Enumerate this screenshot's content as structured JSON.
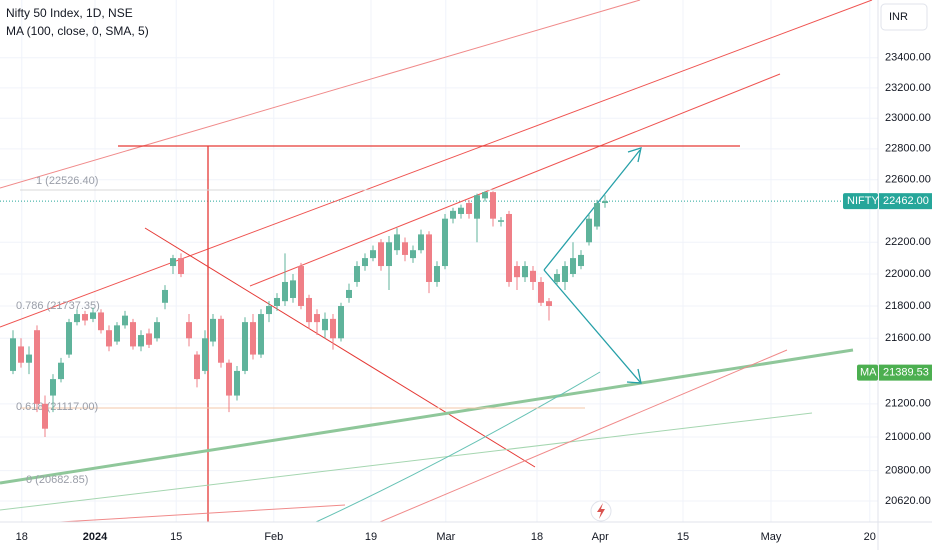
{
  "chart_data": {
    "type": "candlestick",
    "title": "Nifty 50 Index, 1D, NSE",
    "subtitle": "MA (100, close, 0, SMA, 5)",
    "currency": "INR",
    "log": true,
    "grid": true,
    "up_color": "#5fb39b",
    "down_color": "#ef7f87",
    "x": [
      0,
      1,
      2,
      3,
      4,
      5,
      6,
      7,
      8,
      9,
      10,
      11,
      12,
      13,
      14,
      15,
      16,
      17,
      18,
      19,
      20,
      21,
      22,
      23,
      24,
      25,
      26,
      27,
      28,
      29,
      30,
      31,
      32,
      33,
      34,
      35,
      36,
      37,
      38,
      39,
      40,
      41,
      42,
      43,
      44,
      45,
      46,
      47,
      48,
      49,
      50,
      51,
      52,
      53,
      54,
      55,
      56,
      57,
      58,
      59,
      60,
      61,
      62,
      63,
      64,
      65,
      66,
      67,
      68,
      69,
      70,
      71,
      72,
      73,
      74
    ],
    "open": [
      21400,
      21550,
      21450,
      21650,
      21200,
      21250,
      21350,
      21500,
      21700,
      21750,
      21720,
      21760,
      21650,
      21580,
      21680,
      21700,
      21550,
      21630,
      21600,
      21820,
      22050,
      22100,
      21700,
      21500,
      21400,
      21580,
      21720,
      21450,
      21250,
      21400,
      21700,
      21500,
      21750,
      21800,
      21830,
      21850,
      22050,
      21850,
      21750,
      21650,
      21720,
      21600,
      21850,
      21950,
      22050,
      22100,
      22200,
      22050,
      22150,
      22200,
      22100,
      22150,
      22250,
      21950,
      22050,
      22350,
      22380,
      22450,
      22350,
      22480,
      22520,
      22330,
      22380,
      22050,
      21980,
      22020,
      21950,
      21830,
      21950,
      21950,
      22000,
      22050,
      22200,
      22300,
      22450
    ],
    "high": [
      21650,
      21600,
      21550,
      21680,
      21250,
      21380,
      21480,
      21720,
      21780,
      21770,
      21790,
      21780,
      21680,
      21700,
      21770,
      21720,
      21650,
      21660,
      21730,
      21930,
      22120,
      22130,
      21750,
      21520,
      21650,
      21750,
      21740,
      21470,
      21430,
      21730,
      21750,
      21780,
      21830,
      21880,
      22130,
      22000,
      22070,
      21870,
      21780,
      21760,
      21750,
      21820,
      21940,
      22080,
      22130,
      22180,
      22220,
      22240,
      22290,
      22230,
      22180,
      22280,
      22270,
      22080,
      22380,
      22420,
      22440,
      22470,
      22510,
      22526,
      22526,
      22360,
      22400,
      22080,
      22080,
      22050,
      21980,
      21850,
      22030,
      22080,
      22200,
      22150,
      22380,
      22470,
      22500
    ],
    "low": [
      21380,
      21420,
      21380,
      21150,
      21000,
      21150,
      21330,
      21480,
      21680,
      21680,
      21700,
      21630,
      21520,
      21560,
      21660,
      21530,
      21520,
      21540,
      21580,
      21780,
      22000,
      21980,
      21550,
      21300,
      21380,
      21550,
      21420,
      21150,
      21220,
      21380,
      21470,
      21480,
      21700,
      21770,
      21800,
      21820,
      21780,
      21660,
      21620,
      21600,
      21530,
      21580,
      21820,
      21920,
      22020,
      22080,
      22020,
      21900,
      22120,
      22080,
      22070,
      22130,
      21880,
      21920,
      22030,
      22320,
      22350,
      22350,
      22200,
      22460,
      22300,
      22300,
      21920,
      21900,
      21950,
      21900,
      21800,
      21710,
      21930,
      21900,
      21980,
      22030,
      22180,
      22280,
      22420
    ],
    "close": [
      21600,
      21450,
      21500,
      21200,
      21050,
      21350,
      21450,
      21700,
      21750,
      21710,
      21760,
      21650,
      21550,
      21680,
      21740,
      21550,
      21620,
      21560,
      21700,
      21900,
      22100,
      22000,
      21600,
      21350,
      21600,
      21720,
      21450,
      21250,
      21400,
      21700,
      21500,
      21750,
      21800,
      21850,
      21950,
      21960,
      21800,
      21700,
      21700,
      21720,
      21600,
      21800,
      21900,
      22050,
      22100,
      22150,
      22050,
      22200,
      22250,
      22120,
      22150,
      22250,
      21950,
      22050,
      22350,
      22400,
      22420,
      22380,
      22500,
      22520,
      22350,
      22340,
      21950,
      21980,
      22050,
      21950,
      21820,
      21800,
      22000,
      22050,
      22100,
      22120,
      22350,
      22450,
      22462
    ],
    "xlim": [
      -1.625,
      108.125
    ],
    "xticks": [
      {
        "value": 1.1,
        "label": "18"
      },
      {
        "value": 10.25,
        "label": "2024"
      },
      {
        "value": 20.4,
        "label": "15"
      },
      {
        "value": 32.6,
        "label": "Feb"
      },
      {
        "value": 44.75,
        "label": "19"
      },
      {
        "value": 54.1,
        "label": "Mar"
      },
      {
        "value": 65.5,
        "label": "18"
      },
      {
        "value": 73.4,
        "label": "Apr"
      },
      {
        "value": 83.75,
        "label": "15"
      },
      {
        "value": 94.75,
        "label": "May"
      },
      {
        "value": 107.1,
        "label": "20"
      }
    ],
    "ylim": [
      20497,
      23789
    ],
    "yticks": [
      {
        "value": 20620,
        "label": "20620.00"
      },
      {
        "value": 20800,
        "label": "20800.00"
      },
      {
        "value": 21000,
        "label": "21000.00"
      },
      {
        "value": 21200,
        "label": "21200.00"
      },
      {
        "value": 21600,
        "label": "21600.00"
      },
      {
        "value": 21800,
        "label": "21800.00"
      },
      {
        "value": 22000,
        "label": "22000.00"
      },
      {
        "value": 22200,
        "label": "22200.00"
      },
      {
        "value": 22600,
        "label": "22600.00"
      },
      {
        "value": 22800,
        "label": "22800.00"
      },
      {
        "value": 23000,
        "label": "23000.00"
      },
      {
        "value": 23200,
        "label": "23200.00"
      },
      {
        "value": 23400,
        "label": "23400.00"
      }
    ],
    "last_price": {
      "name": "NIFTY",
      "value": 22462,
      "label": "22462.00",
      "color": "#26a69a"
    },
    "ma_price": {
      "name": "MA",
      "value": 21389.53,
      "color": "#4caf50"
    },
    "annotations": [
      "1 (22526.40)",
      "0.786 (21737.35)",
      "0.618 (21117.00)",
      "0 (20682.85)"
    ]
  }
}
